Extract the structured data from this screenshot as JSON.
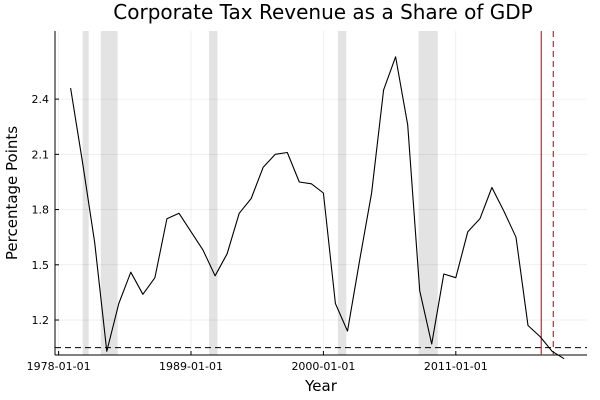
{
  "chart_data": {
    "type": "line",
    "title": "Corporate Tax Revenue as a Share of GDP",
    "xlabel": "Year",
    "ylabel": "Percentage Points",
    "x_ticks": [
      "1978-01-01",
      "1989-01-01",
      "2000-01-01",
      "2011-01-01"
    ],
    "y_ticks": [
      "1.2",
      "1.5",
      "1.8",
      "2.1",
      "2.4"
    ],
    "xlim": [
      1977.7,
      2021.9
    ],
    "ylim": [
      1.01,
      2.77
    ],
    "grid": true,
    "legend": "none",
    "series": [
      {
        "color": "#000000",
        "x": [
          1979,
          1980,
          1981,
          1982,
          1983,
          1984,
          1985,
          1986,
          1987,
          1988,
          1989,
          1990,
          1991,
          1992,
          1993,
          1994,
          1995,
          1996,
          1997,
          1998,
          1999,
          2000,
          2001,
          2002,
          2003,
          2004,
          2005,
          2006,
          2007,
          2008,
          2009,
          2010,
          2011,
          2012,
          2013,
          2014,
          2015,
          2016,
          2017,
          2018,
          2019,
          2020
        ],
        "values": [
          2.46,
          2.05,
          1.62,
          1.03,
          1.29,
          1.46,
          1.34,
          1.43,
          1.75,
          1.78,
          1.68,
          1.58,
          1.44,
          1.56,
          1.78,
          1.86,
          2.03,
          2.1,
          2.11,
          1.95,
          1.94,
          1.89,
          1.29,
          1.14,
          1.52,
          1.89,
          2.45,
          2.63,
          2.26,
          1.36,
          1.07,
          1.45,
          1.43,
          1.68,
          1.75,
          1.92,
          1.79,
          1.65,
          1.17,
          1.11,
          1.03,
          0.99
        ]
      }
    ],
    "recession_shading": [
      [
        1980.0,
        1980.5
      ],
      [
        1981.5,
        1982.9
      ],
      [
        1990.5,
        1991.2
      ],
      [
        2001.2,
        2001.9
      ],
      [
        2007.9,
        2009.5
      ]
    ],
    "hline": {
      "value": 1.05,
      "style": "dashed",
      "color": "#000000"
    },
    "vlines": [
      {
        "x": 2018.1,
        "style": "solid",
        "color": "#e41a1c"
      },
      {
        "x": 2019.1,
        "style": "dashed",
        "color": "#e41a1c"
      }
    ]
  }
}
